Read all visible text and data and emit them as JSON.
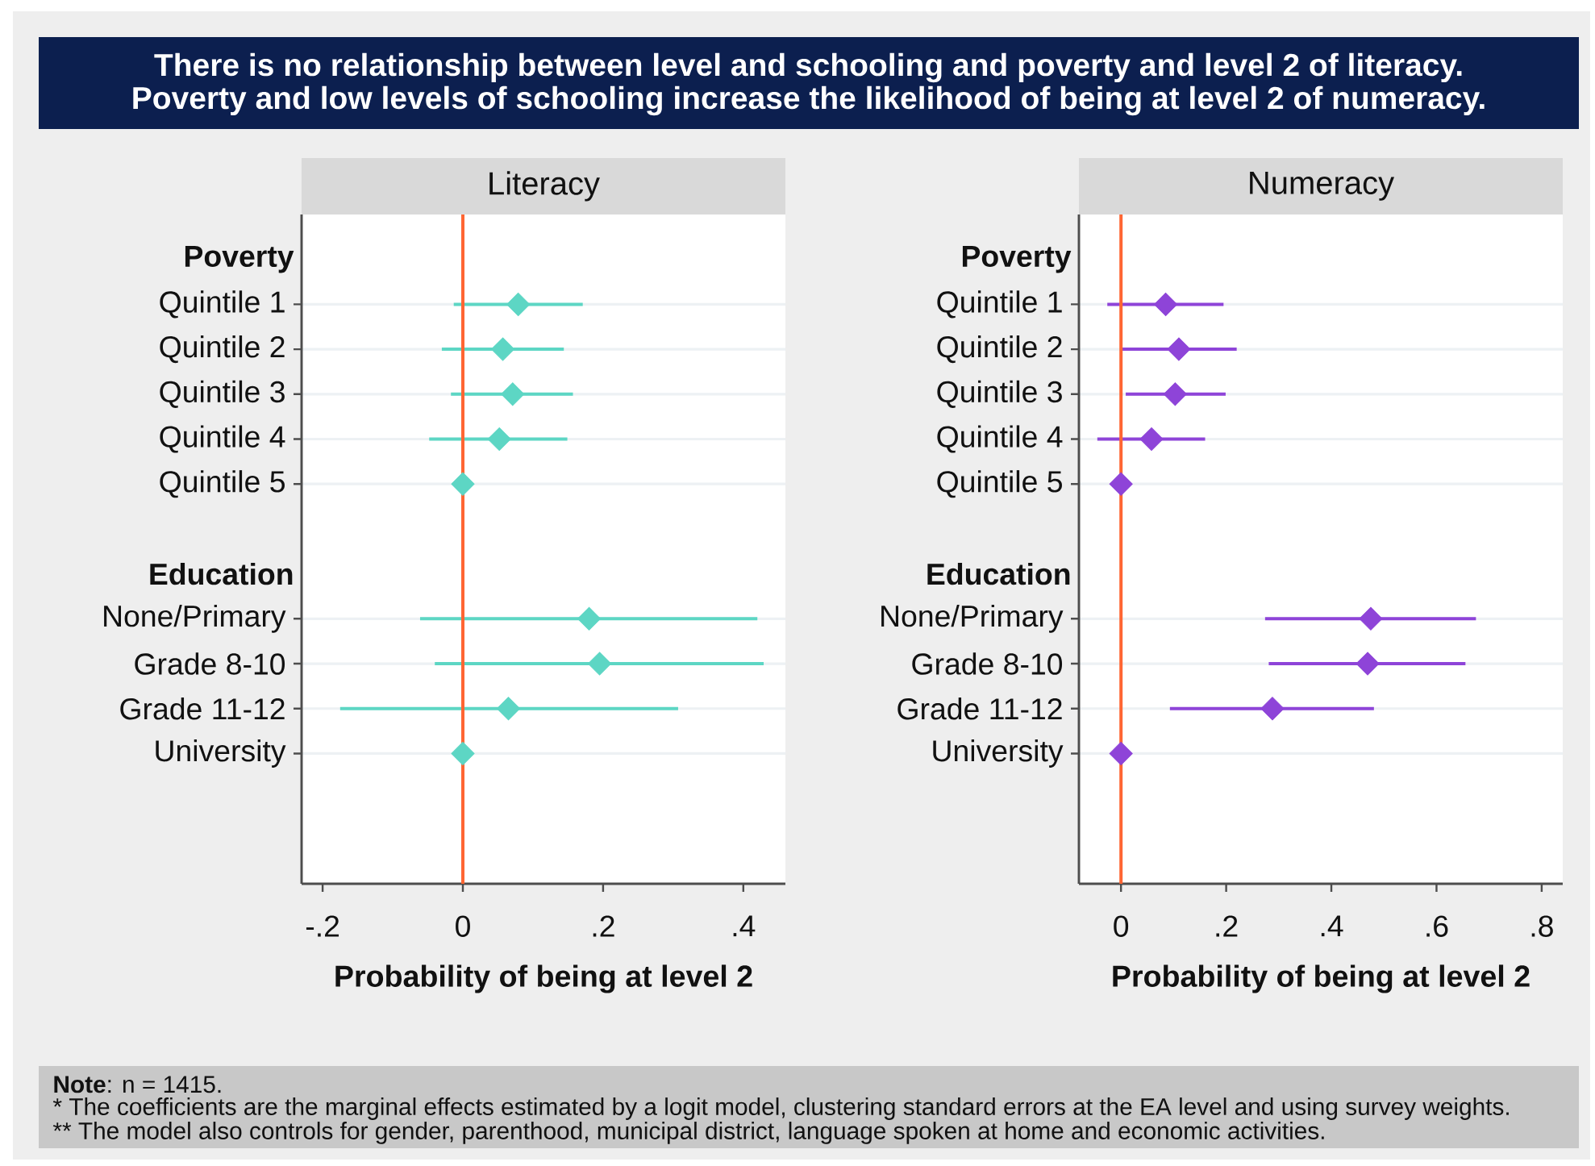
{
  "chart_data": [
    {
      "type": "other",
      "title": "There is no relationship between level and schooling and poverty and level 2 of literacy.",
      "subtitle": "Poverty and low levels of schooling increase the likelihood of being at level 2 of numeracy."
    },
    {
      "type": "scatter",
      "orientation": "horizontal",
      "title": "Literacy",
      "xlabel": "Probability of being at level 2",
      "categories": [
        "Poverty",
        "Quintile 1",
        "Quintile 2",
        "Quintile 3",
        "Quintile 4",
        "Quintile 5",
        null,
        "Education",
        "None/Primary",
        "Grade 8-10",
        "Grade 11-12",
        "University"
      ],
      "values": [
        null,
        0.079,
        0.057,
        0.071,
        0.052,
        0,
        null,
        null,
        0.18,
        0.195,
        0.065,
        0
      ],
      "errors": [
        null,
        [
          -0.013,
          0.171
        ],
        [
          -0.03,
          0.144
        ],
        [
          -0.017,
          0.157
        ],
        [
          -0.048,
          0.149
        ],
        null,
        null,
        null,
        [
          -0.061,
          0.42
        ],
        [
          -0.04,
          0.429
        ],
        [
          -0.175,
          0.307
        ],
        null
      ],
      "color": "#5dd6c4",
      "marker": "diamond",
      "xlim": [
        -0.23,
        0.46
      ],
      "xticks": [
        {
          "value": -0.2,
          "label": "-.2"
        },
        0,
        {
          "value": 0.2,
          "label": ".2"
        },
        {
          "value": 0.4,
          "label": ".4"
        }
      ],
      "grid": "y",
      "ref_lines": [
        {
          "axis": "x",
          "value": 0,
          "color": "#ff6633"
        }
      ]
    },
    {
      "type": "scatter",
      "orientation": "horizontal",
      "title": "Numeracy",
      "xlabel": "Probability of being at level 2",
      "categories": [
        "Poverty",
        "Quintile 1",
        "Quintile 2",
        "Quintile 3",
        "Quintile 4",
        "Quintile 5",
        null,
        "Education",
        "None/Primary",
        "Grade 8-10",
        "Grade 11-12",
        "University"
      ],
      "values": [
        null,
        0.085,
        0.11,
        0.103,
        0.058,
        0,
        null,
        null,
        0.475,
        0.469,
        0.288,
        0
      ],
      "errors": [
        null,
        [
          -0.026,
          0.195
        ],
        [
          0.002,
          0.22
        ],
        [
          0.009,
          0.199
        ],
        [
          -0.045,
          0.16
        ],
        null,
        null,
        null,
        [
          0.274,
          0.675
        ],
        [
          0.281,
          0.655
        ],
        [
          0.093,
          0.481
        ],
        null
      ],
      "color": "#8e44d8",
      "marker": "diamond",
      "xlim": [
        -0.08,
        0.84
      ],
      "xticks": [
        0,
        {
          "value": 0.2,
          "label": ".2"
        },
        {
          "value": 0.4,
          "label": ".4"
        },
        {
          "value": 0.6,
          "label": ".6"
        },
        {
          "value": 0.8,
          "label": ".8"
        }
      ],
      "grid": "y",
      "ref_lines": [
        {
          "axis": "x",
          "value": 0,
          "color": "#ff6633"
        }
      ]
    },
    {
      "type": "other",
      "annotations": [
        "**Note**: n = 1415.",
        "* The coefficients are the marginal effects estimated by a logit model, clustering standard errors at the EA level and using survey weights.",
        "** The model also controls for gender, parenthood, municipal district, language spoken at home and economic activities."
      ]
    }
  ]
}
